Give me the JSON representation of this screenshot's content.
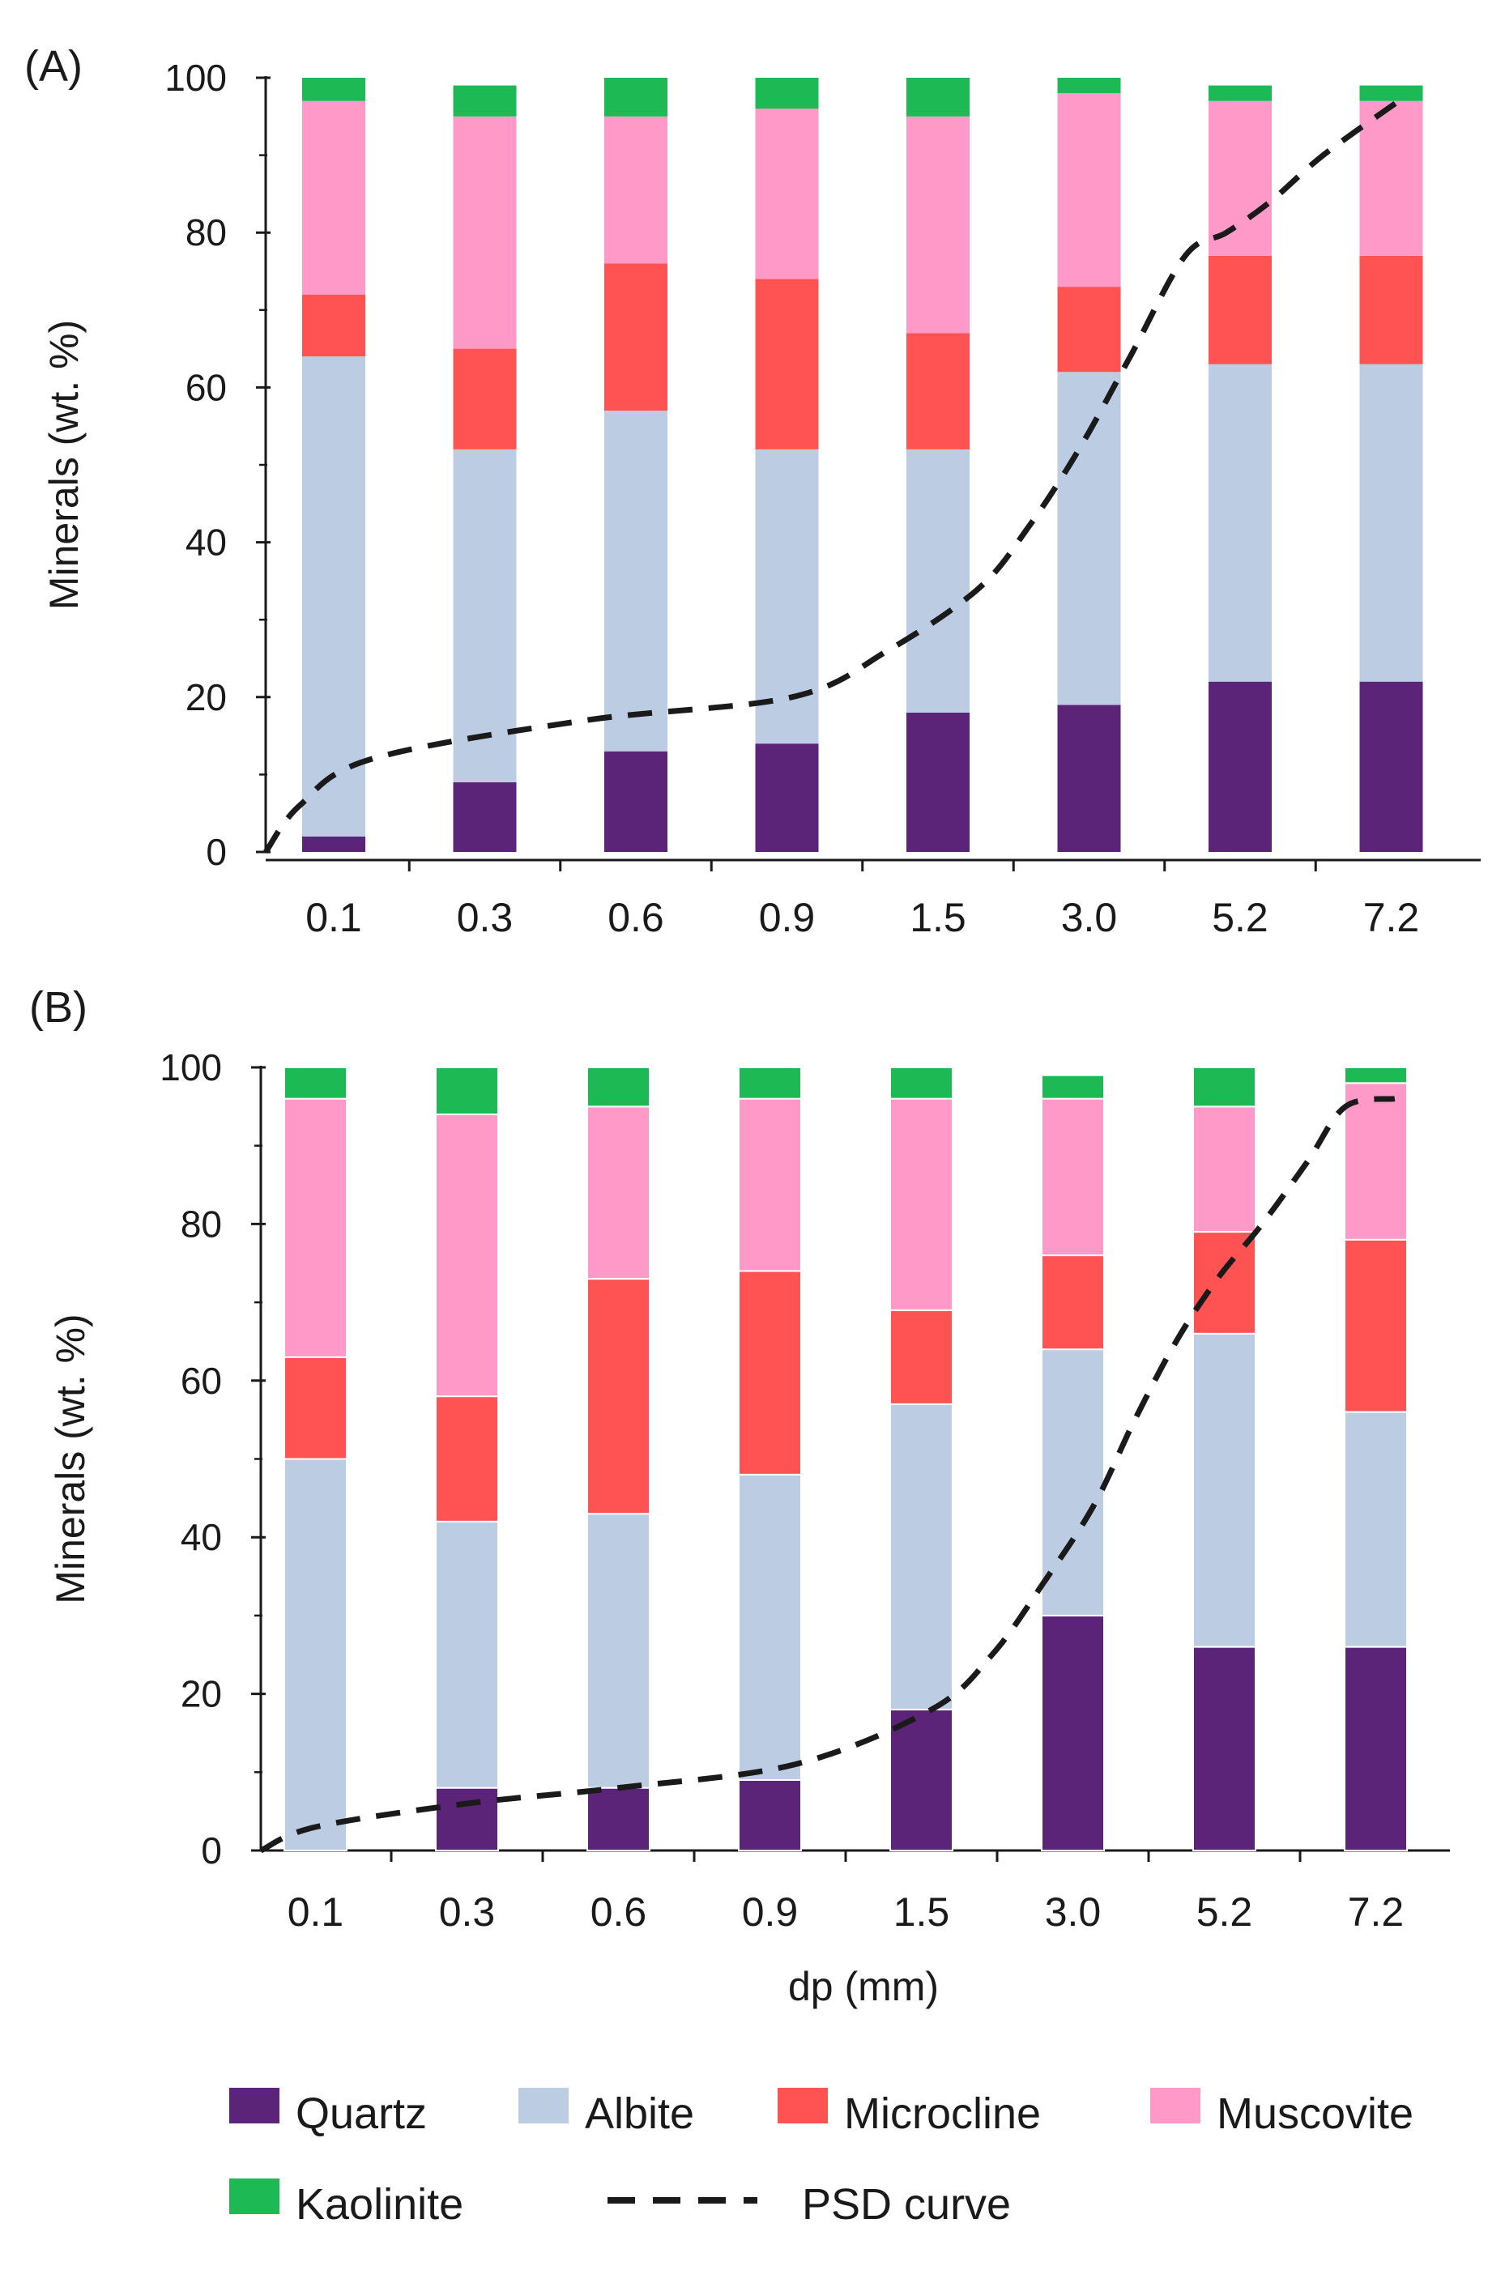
{
  "chart_data": [
    {
      "panel_label": "(A)",
      "type": "bar",
      "stacked": true,
      "categories": [
        "0.1",
        "0.3",
        "0.6",
        "0.9",
        "1.5",
        "3.0",
        "5.2",
        "7.2"
      ],
      "ylabel": "Minerals (wt. %)",
      "xlabel": "",
      "ylim": [
        0,
        100
      ],
      "yticks": [
        0,
        20,
        40,
        60,
        80,
        100
      ],
      "series": [
        {
          "name": "Quartz",
          "values": [
            2,
            9,
            13,
            14,
            18,
            19,
            22,
            22
          ]
        },
        {
          "name": "Albite",
          "values": [
            62,
            43,
            44,
            38,
            34,
            43,
            41,
            41
          ]
        },
        {
          "name": "Microcline",
          "values": [
            8,
            13,
            19,
            22,
            15,
            11,
            14,
            14
          ]
        },
        {
          "name": "Muscovite",
          "values": [
            25,
            30,
            19,
            22,
            28,
            25,
            20,
            20
          ]
        },
        {
          "name": "Kaolinite",
          "values": [
            3,
            4,
            5,
            4,
            5,
            2,
            2,
            2
          ]
        }
      ],
      "psd_curve": {
        "name": "PSD curve",
        "x": [
          0,
          0.05,
          0.15,
          0.5,
          0.92,
          1.3,
          1.9,
          2.4,
          2.9,
          3.6,
          4.4,
          5.0,
          5.6,
          6.3,
          7.3
        ],
        "y": [
          0,
          6,
          12,
          17,
          20,
          26,
          34,
          42,
          52,
          64,
          77,
          80,
          84,
          90,
          97
        ]
      }
    },
    {
      "panel_label": "(B)",
      "type": "bar",
      "stacked": true,
      "categories": [
        "0.1",
        "0.3",
        "0.6",
        "0.9",
        "1.5",
        "3.0",
        "5.2",
        "7.2"
      ],
      "ylabel": "Minerals (wt. %)",
      "xlabel": "dp (mm)",
      "ylim": [
        0,
        100
      ],
      "yticks": [
        0,
        20,
        40,
        60,
        80,
        100
      ],
      "series": [
        {
          "name": "Quartz",
          "values": [
            0,
            8,
            8,
            9,
            18,
            30,
            26,
            26
          ]
        },
        {
          "name": "Albite",
          "values": [
            50,
            34,
            35,
            39,
            39,
            34,
            40,
            30
          ]
        },
        {
          "name": "Microcline",
          "values": [
            13,
            16,
            30,
            26,
            12,
            12,
            13,
            22
          ]
        },
        {
          "name": "Muscovite",
          "values": [
            33,
            36,
            22,
            22,
            27,
            20,
            16,
            20
          ]
        },
        {
          "name": "Kaolinite",
          "values": [
            4,
            6,
            5,
            4,
            4,
            3,
            5,
            2
          ]
        }
      ],
      "psd_curve": {
        "name": "PSD curve",
        "x": [
          0,
          0.1,
          0.3,
          0.6,
          1.0,
          1.6,
          2.2,
          2.7,
          3.3,
          3.9,
          4.5,
          5.1,
          5.7,
          6.3,
          6.8,
          7.45
        ],
        "y": [
          0,
          3,
          6,
          8,
          11,
          18,
          25,
          34,
          44,
          55,
          65,
          73,
          80,
          88,
          95,
          96
        ]
      }
    }
  ],
  "legend": {
    "items": [
      {
        "name": "Quartz",
        "label": "Quartz",
        "color": "#5b2479",
        "kind": "box"
      },
      {
        "name": "Albite",
        "label": "Albite",
        "color": "#bccde3",
        "kind": "box"
      },
      {
        "name": "Microcline",
        "label": "Microcline",
        "color": "#ff5252",
        "kind": "box"
      },
      {
        "name": "Muscovite",
        "label": "Muscovite",
        "color": "#ff99c8",
        "kind": "box"
      },
      {
        "name": "Kaolinite",
        "label": "Kaolinite",
        "color": "#1db954",
        "kind": "box"
      },
      {
        "name": "PSD curve",
        "label": "PSD curve",
        "color": "#1a1a1a",
        "kind": "dashed-line"
      }
    ]
  },
  "colors": {
    "Quartz": "#5b2479",
    "Albite": "#bccde3",
    "Microcline": "#ff5252",
    "Muscovite": "#ff99c8",
    "Kaolinite": "#1db954",
    "curve": "#1a1a1a",
    "axis": "#1a1a1a"
  }
}
